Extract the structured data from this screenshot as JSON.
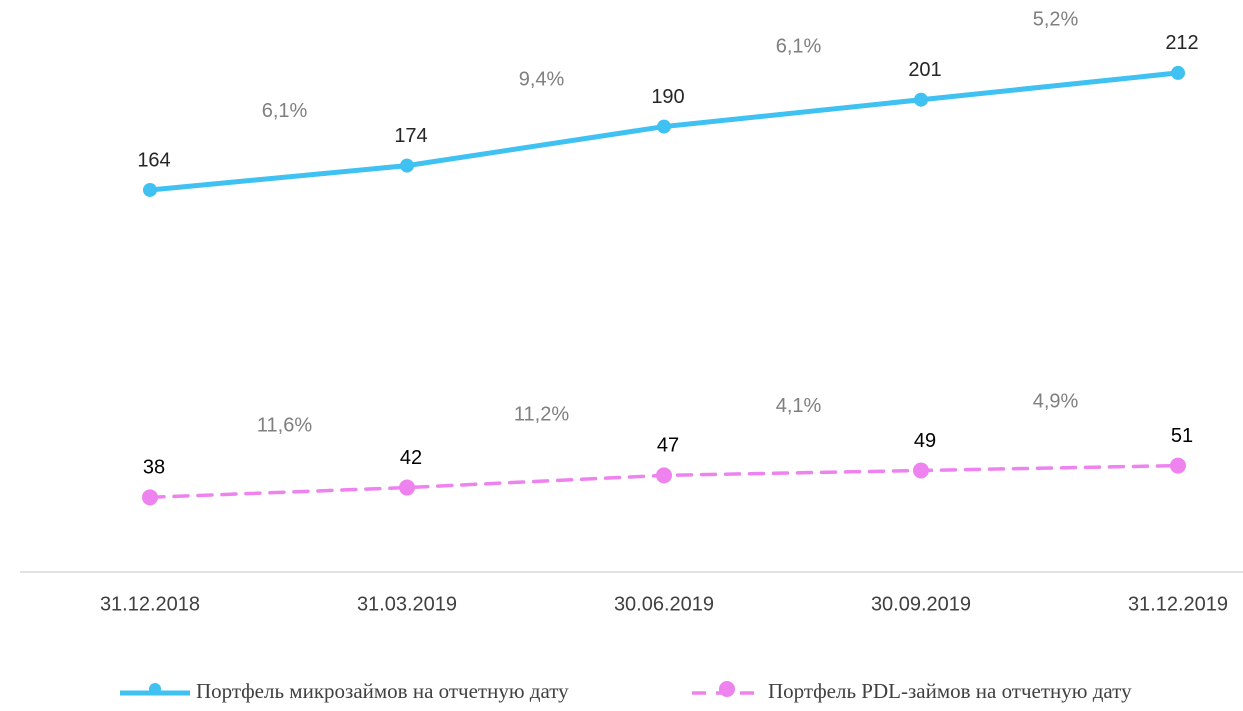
{
  "chart_data": {
    "type": "line",
    "categories": [
      "31.12.2018",
      "31.03.2019",
      "30.06.2019",
      "30.09.2019",
      "31.12.2019"
    ],
    "series": [
      {
        "name": "Портфель микрозаймов на отчетную дату",
        "color": "#3fc1f1",
        "dashed": false,
        "values": [
          164,
          174,
          190,
          201,
          212
        ],
        "growth_labels": [
          "6,1%",
          "9,4%",
          "6,1%",
          "5,2%"
        ]
      },
      {
        "name": "Портфель PDL-займов на отчетную дату",
        "color": "#ee82ee",
        "dashed": true,
        "values": [
          38,
          42,
          47,
          49,
          51
        ],
        "growth_labels": [
          "11,6%",
          "11,2%",
          "4,1%",
          "4,9%"
        ]
      }
    ],
    "ylim": [
      0,
      230
    ],
    "legend": "bottom"
  }
}
